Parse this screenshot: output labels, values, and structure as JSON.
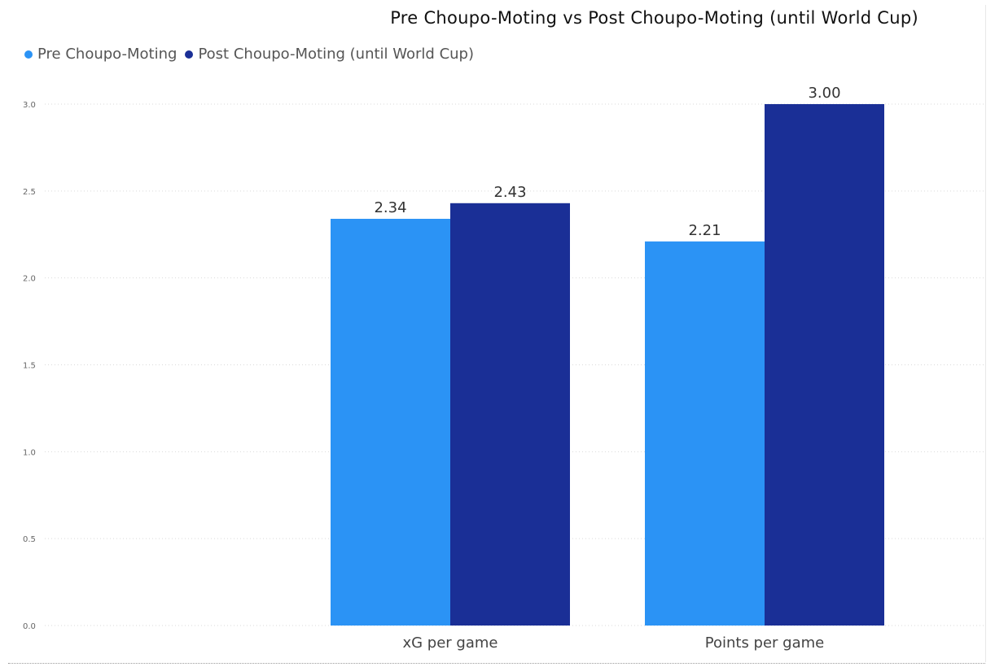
{
  "chart_data": {
    "type": "bar",
    "title": "Pre Choupo-Moting vs Post Choupo-Moting (until World Cup)",
    "categories": [
      "xG per game",
      "Points per game"
    ],
    "series": [
      {
        "name": "Pre Choupo-Moting",
        "values": [
          2.34,
          2.21
        ],
        "labels": [
          "2.34",
          "2.21"
        ],
        "color": "#2B93F5"
      },
      {
        "name": "Post Choupo-Moting (until World Cup)",
        "values": [
          2.43,
          3.0
        ],
        "labels": [
          "2.43",
          "3.00"
        ],
        "color": "#1A2F96"
      }
    ],
    "ylim": [
      0,
      3.0
    ],
    "yticks": [
      0,
      0.5,
      1.0,
      1.5,
      2.0,
      2.5,
      3.0
    ],
    "ytick_labels": [
      "0.0",
      "0.5",
      "1.0",
      "1.5",
      "2.0",
      "2.5",
      "3.0"
    ],
    "grid": true,
    "legend": "top-left"
  },
  "colors": {
    "pre": "#2B93F5",
    "post": "#1A2F96",
    "grid": "#d9d9d9"
  }
}
